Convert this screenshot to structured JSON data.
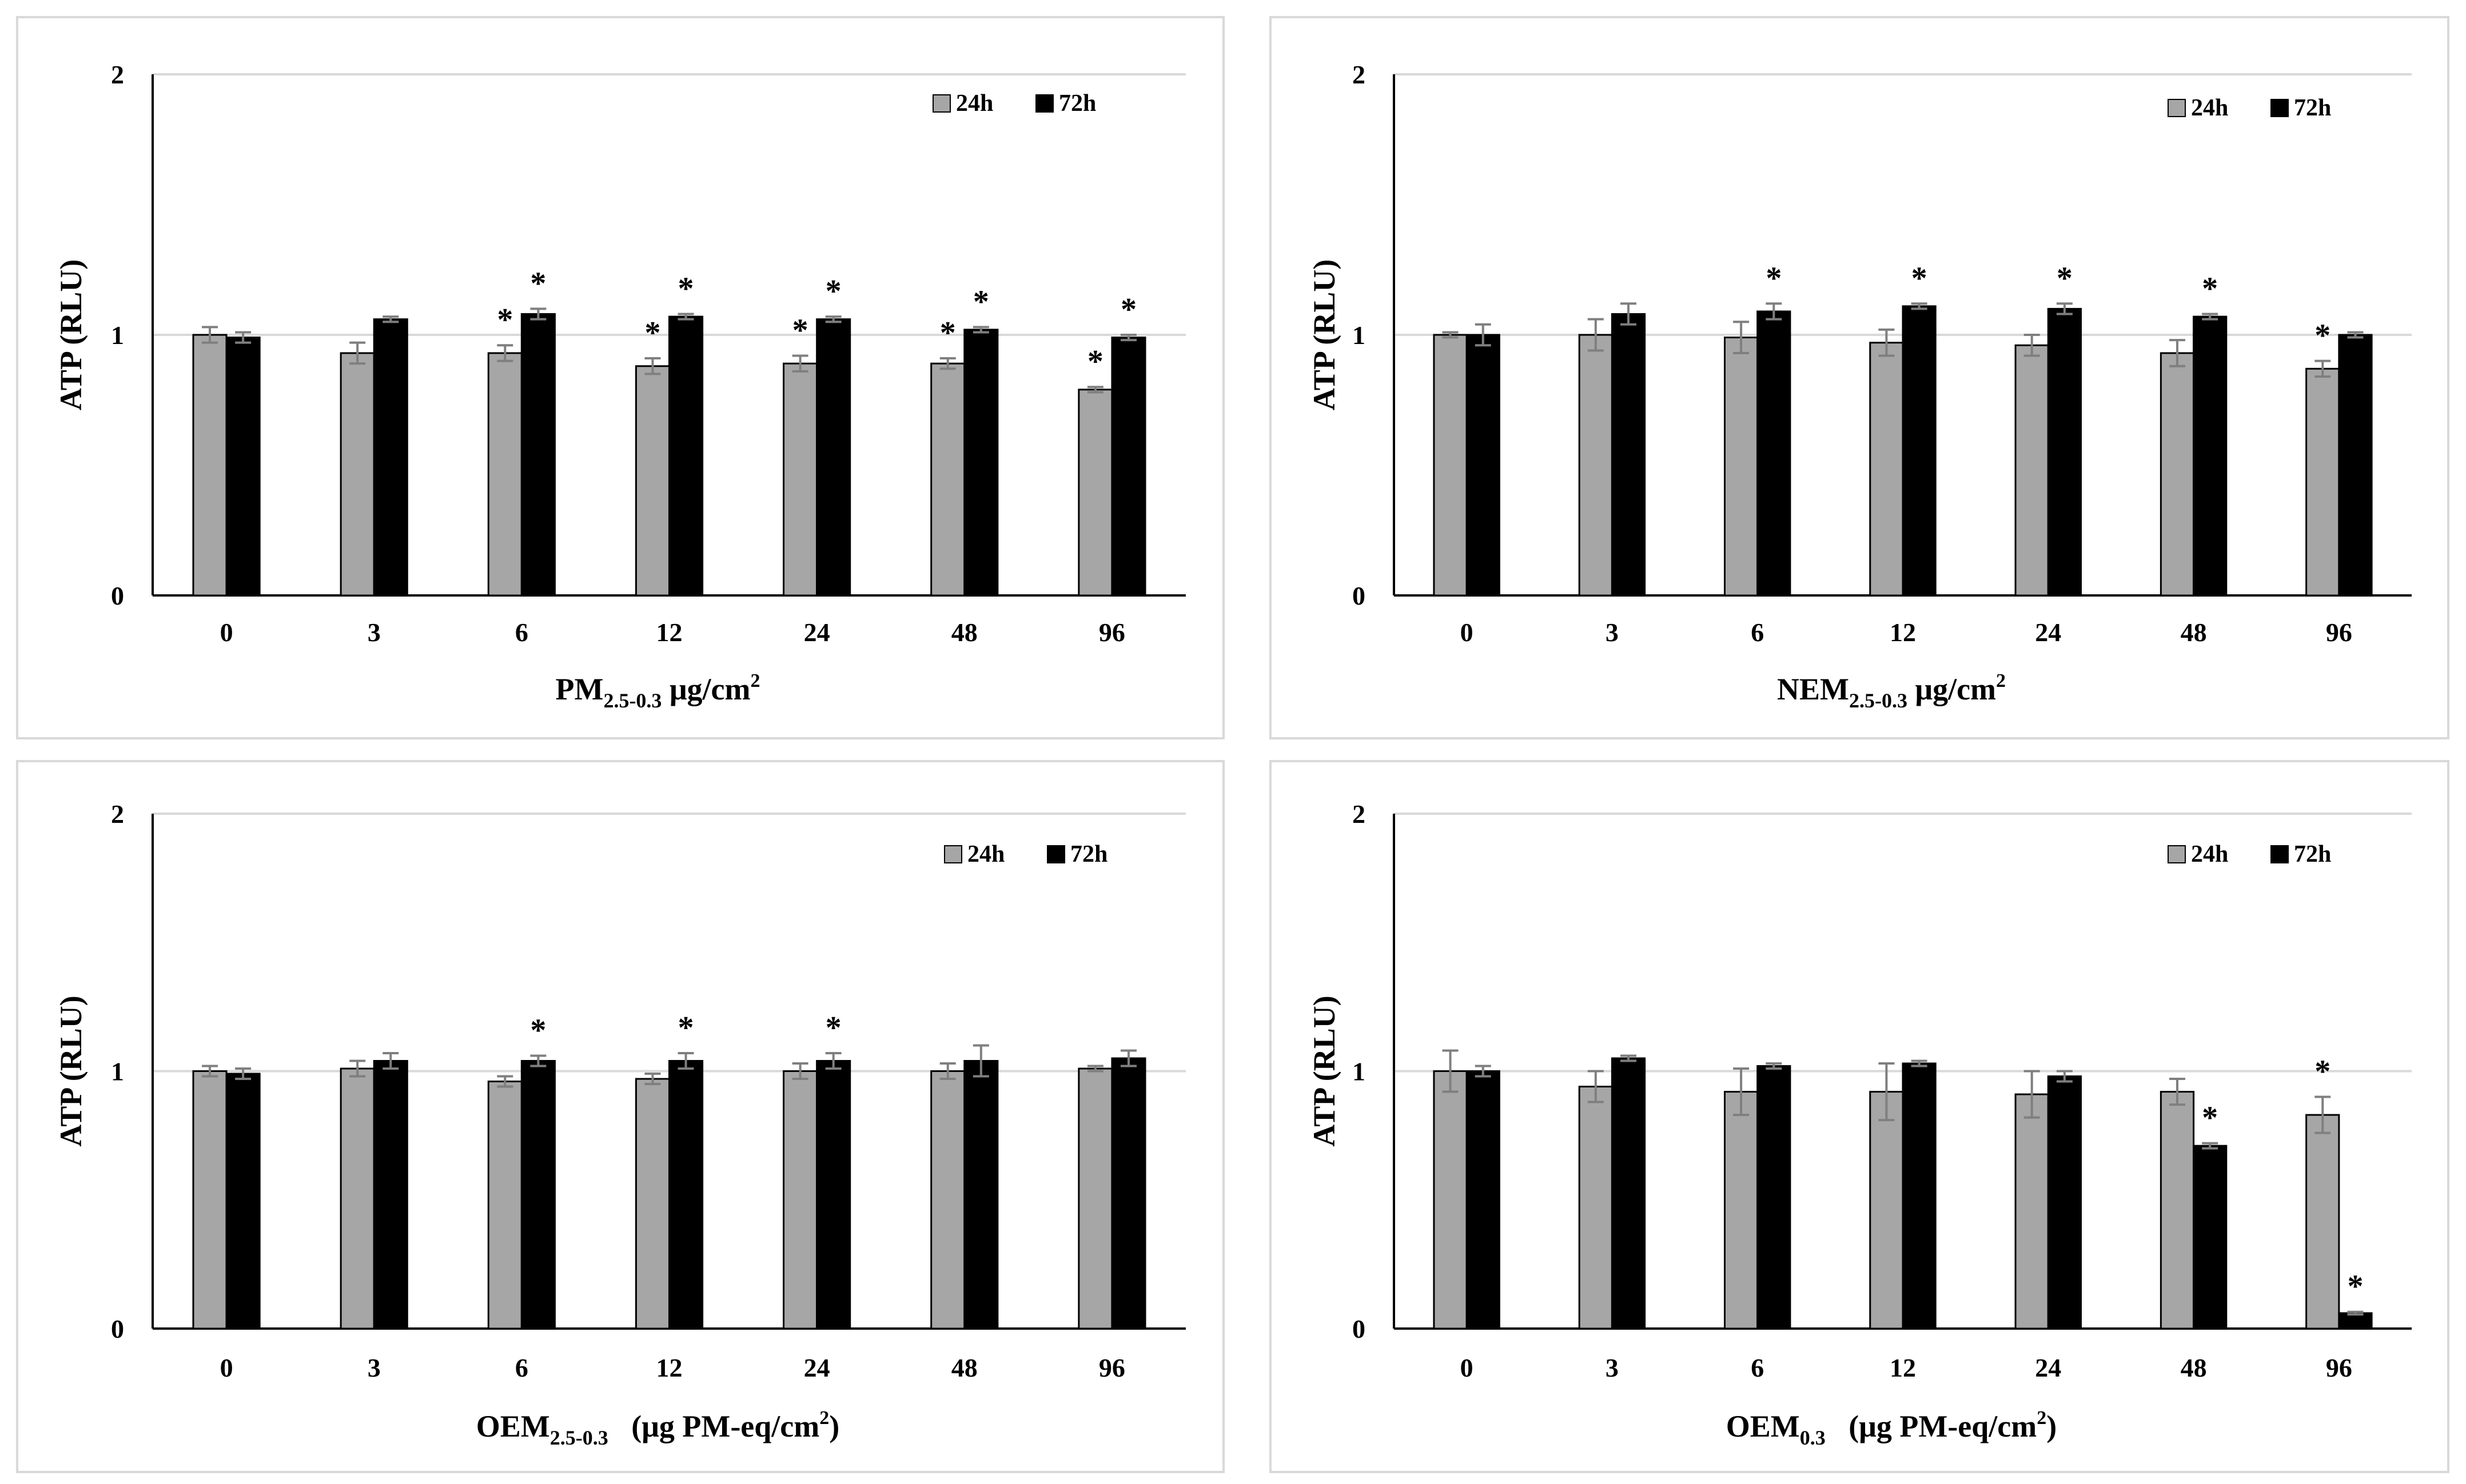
{
  "colors": {
    "series_24h": "#a6a6a6",
    "series_72h": "#000000",
    "grid": "#d9d9d9",
    "axis": "#000000"
  },
  "chart_data": [
    {
      "type": "bar",
      "ylabel": "ATP (RLU)",
      "xlabel": {
        "base": "PM",
        "sub": "2.5-0.3",
        "rest": " μg/cm",
        "sup": "2"
      },
      "categories": [
        "0",
        "3",
        "6",
        "12",
        "24",
        "48",
        "96"
      ],
      "ylim": [
        0,
        2
      ],
      "yticks": [
        "0",
        "1",
        "2"
      ],
      "legend_position": "top-right",
      "series": [
        {
          "name": "24h",
          "values": [
            1.0,
            0.93,
            0.93,
            0.88,
            0.89,
            0.89,
            0.79
          ],
          "errors": [
            0.03,
            0.04,
            0.03,
            0.03,
            0.03,
            0.02,
            0.01
          ],
          "sig": [
            false,
            false,
            true,
            true,
            true,
            true,
            true
          ]
        },
        {
          "name": "72h",
          "values": [
            0.99,
            1.06,
            1.08,
            1.07,
            1.06,
            1.02,
            0.99
          ],
          "errors": [
            0.02,
            0.01,
            0.02,
            0.01,
            0.01,
            0.01,
            0.01
          ],
          "sig": [
            false,
            false,
            true,
            true,
            true,
            true,
            true
          ]
        }
      ]
    },
    {
      "type": "bar",
      "ylabel": "ATP (RLU)",
      "xlabel": {
        "base": "NEM",
        "sub": "2.5-0.3",
        "rest": " μg/cm",
        "sup": "2"
      },
      "categories": [
        "0",
        "3",
        "6",
        "12",
        "24",
        "48",
        "96"
      ],
      "ylim": [
        0,
        2
      ],
      "yticks": [
        "0",
        "1",
        "2"
      ],
      "legend_position": "top-right",
      "series": [
        {
          "name": "24h",
          "values": [
            1.0,
            1.0,
            0.99,
            0.97,
            0.96,
            0.93,
            0.87
          ],
          "errors": [
            0.01,
            0.06,
            0.06,
            0.05,
            0.04,
            0.05,
            0.03
          ],
          "sig": [
            false,
            false,
            false,
            false,
            false,
            false,
            true
          ]
        },
        {
          "name": "72h",
          "values": [
            1.0,
            1.08,
            1.09,
            1.11,
            1.1,
            1.07,
            1.0
          ],
          "errors": [
            0.04,
            0.04,
            0.03,
            0.01,
            0.02,
            0.01,
            0.01
          ],
          "sig": [
            false,
            false,
            true,
            true,
            true,
            true,
            false
          ]
        }
      ]
    },
    {
      "type": "bar",
      "ylabel": "ATP (RLU)",
      "xlabel": {
        "base": "OEM",
        "sub": "2.5-0.3",
        "rest": "   (μg PM-eq/cm",
        "sup": "2",
        "tail": ")"
      },
      "categories": [
        "0",
        "3",
        "6",
        "12",
        "24",
        "48",
        "96"
      ],
      "ylim": [
        0,
        2
      ],
      "yticks": [
        "0",
        "1",
        "2"
      ],
      "legend_position": "top-right",
      "series": [
        {
          "name": "24h",
          "values": [
            1.0,
            1.01,
            0.96,
            0.97,
            1.0,
            1.0,
            1.01
          ],
          "errors": [
            0.02,
            0.03,
            0.02,
            0.02,
            0.03,
            0.03,
            0.01
          ],
          "sig": [
            false,
            false,
            false,
            false,
            false,
            false,
            false
          ]
        },
        {
          "name": "72h",
          "values": [
            0.99,
            1.04,
            1.04,
            1.04,
            1.04,
            1.04,
            1.05
          ],
          "errors": [
            0.02,
            0.03,
            0.02,
            0.03,
            0.03,
            0.06,
            0.03
          ],
          "sig": [
            false,
            false,
            true,
            true,
            true,
            false,
            false
          ]
        }
      ]
    },
    {
      "type": "bar",
      "ylabel": "ATP (RLU)",
      "xlabel": {
        "base": "OEM",
        "sub": "0.3",
        "rest": "   (μg PM-eq/cm",
        "sup": "2",
        "tail": ")"
      },
      "categories": [
        "0",
        "3",
        "6",
        "12",
        "24",
        "48",
        "96"
      ],
      "ylim": [
        0,
        2
      ],
      "yticks": [
        "0",
        "1",
        "2"
      ],
      "legend_position": "top-right",
      "series": [
        {
          "name": "24h",
          "values": [
            1.0,
            0.94,
            0.92,
            0.92,
            0.91,
            0.92,
            0.83
          ],
          "errors": [
            0.08,
            0.06,
            0.09,
            0.11,
            0.09,
            0.05,
            0.07
          ],
          "sig": [
            false,
            false,
            false,
            false,
            false,
            false,
            true
          ]
        },
        {
          "name": "72h",
          "values": [
            1.0,
            1.05,
            1.02,
            1.03,
            0.98,
            0.71,
            0.06
          ],
          "errors": [
            0.02,
            0.01,
            0.01,
            0.01,
            0.02,
            0.01,
            0.005
          ],
          "sig": [
            false,
            false,
            false,
            false,
            false,
            true,
            true
          ]
        }
      ]
    }
  ]
}
